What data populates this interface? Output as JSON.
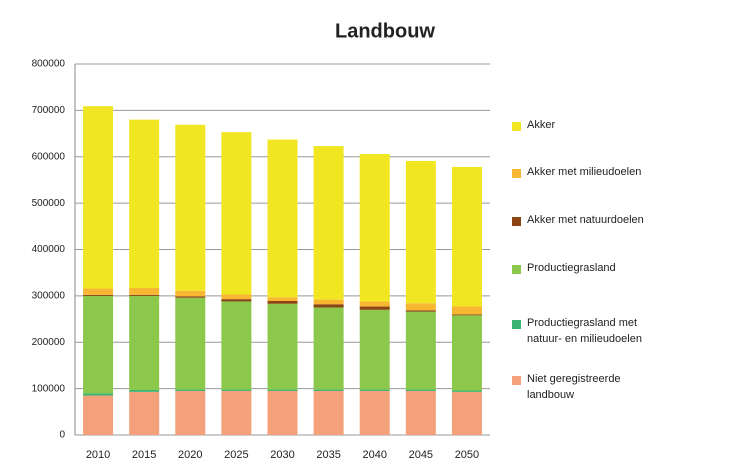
{
  "chart_data": {
    "type": "stacked_bar",
    "title": "Landbouw",
    "categories": [
      "2010",
      "2015",
      "2020",
      "2025",
      "2030",
      "2035",
      "2040",
      "2045",
      "2050"
    ],
    "series": [
      {
        "name": "Niet geregistreerde landbouw",
        "color": "#f4a07a",
        "values": [
          85000,
          93000,
          95000,
          95000,
          95000,
          95000,
          95000,
          95000,
          93000
        ]
      },
      {
        "name": "Productiegrasland met natuur- en milieudoelen",
        "color": "#3cb371",
        "values": [
          5000,
          4000,
          3000,
          3000,
          3000,
          3000,
          3000,
          3000,
          3000
        ]
      },
      {
        "name": "Productiegrasland",
        "color": "#8cc84b",
        "values": [
          210000,
          203000,
          198000,
          190000,
          185000,
          177000,
          172000,
          168000,
          162000
        ]
      },
      {
        "name": "Akker met natuurdoelen",
        "color": "#8b4513",
        "values": [
          2000,
          2000,
          3000,
          5000,
          6000,
          7000,
          7000,
          3000,
          2000
        ]
      },
      {
        "name": "Akker met milieudoelen",
        "color": "#f7b733",
        "values": [
          14000,
          15000,
          12000,
          10000,
          8000,
          10000,
          11000,
          15000,
          17000
        ]
      },
      {
        "name": "Akker",
        "color": "#f0e621",
        "values": [
          393000,
          363000,
          358000,
          350000,
          340000,
          331000,
          318000,
          307000,
          301000
        ]
      }
    ],
    "ylim": [
      0,
      800000
    ],
    "yticks": [
      0,
      100000,
      200000,
      300000,
      400000,
      500000,
      600000,
      700000,
      800000
    ],
    "grid": true
  }
}
